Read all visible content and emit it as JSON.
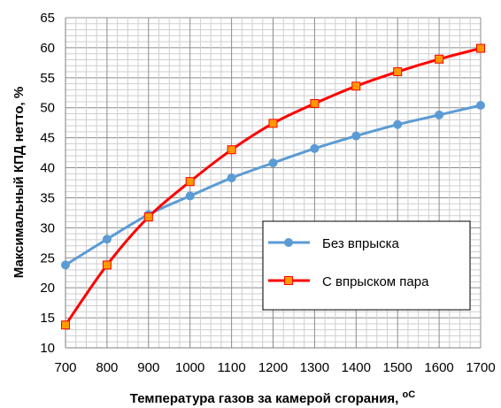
{
  "chart_data": {
    "type": "line",
    "xlabel": "Температура газов за камерой сгорания, ",
    "xlabel_unit": "oC",
    "ylabel": "Максимальный КПД нетто, %",
    "x": [
      700,
      800,
      900,
      1000,
      1100,
      1200,
      1300,
      1400,
      1500,
      1600,
      1700
    ],
    "xlim": [
      700,
      1700
    ],
    "ylim": [
      10,
      65
    ],
    "yticks": [
      10,
      15,
      20,
      25,
      30,
      35,
      40,
      45,
      50,
      55,
      60,
      65
    ],
    "grid": "on",
    "legend_position": "lower-right",
    "series": [
      {
        "name": "Без впрыска",
        "color": "#5b9bd5",
        "marker": "circle",
        "values": [
          23.8,
          28.1,
          32.2,
          35.3,
          38.3,
          40.8,
          43.2,
          45.3,
          47.2,
          48.8,
          50.4
        ]
      },
      {
        "name": "С впрыском пара",
        "color": "#ff0000",
        "marker_color": "#ff9900",
        "marker": "square",
        "values": [
          13.8,
          23.8,
          31.8,
          37.7,
          43.0,
          47.4,
          50.7,
          53.6,
          56.0,
          58.1,
          59.9
        ]
      }
    ]
  }
}
